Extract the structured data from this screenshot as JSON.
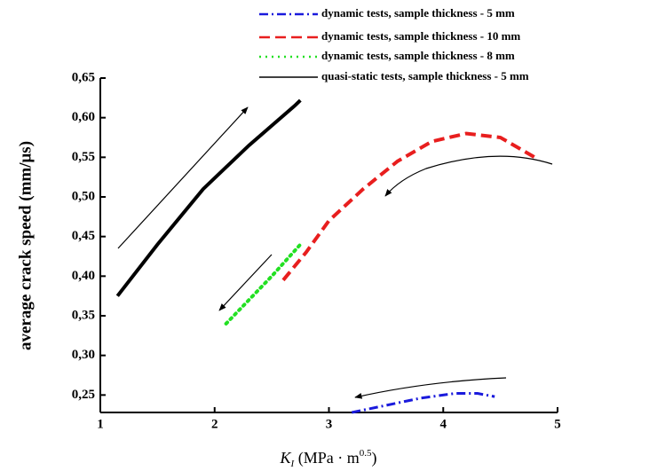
{
  "chart_data": {
    "type": "line",
    "xlabel": [
      "K",
      "I",
      " (MPa · m",
      "0.5",
      ")"
    ],
    "ylabel": "average crack speed (mm/μs)",
    "xlim": [
      1,
      5
    ],
    "xticks": [
      1,
      2,
      3,
      4,
      5
    ],
    "ylim": [
      0.228,
      0.65
    ],
    "yticks": [
      {
        "value": 0.25,
        "label": "0,25"
      },
      {
        "value": 0.3,
        "label": "0,30"
      },
      {
        "value": 0.35,
        "label": "0,35"
      },
      {
        "value": 0.4,
        "label": "0,40"
      },
      {
        "value": 0.45,
        "label": "0,45"
      },
      {
        "value": 0.5,
        "label": "0,50"
      },
      {
        "value": 0.55,
        "label": "0,55"
      },
      {
        "value": 0.6,
        "label": "0,60"
      },
      {
        "value": 0.65,
        "label": "0,65"
      }
    ],
    "series": [
      {
        "name": "dynamic tests, sample thickness - 5 mm",
        "color": "#1a1adc",
        "linestyle": "dashdot",
        "x": [
          3.2,
          3.5,
          3.8,
          4.1,
          4.3,
          4.45
        ],
        "values": [
          0.228,
          0.237,
          0.246,
          0.252,
          0.252,
          0.248
        ]
      },
      {
        "name": "dynamic tests, sample thickness - 10 mm",
        "color": "#e81e1e",
        "linestyle": "dashed",
        "x": [
          2.6,
          2.8,
          3.0,
          3.3,
          3.6,
          3.9,
          4.2,
          4.5,
          4.8
        ],
        "values": [
          0.395,
          0.43,
          0.47,
          0.51,
          0.545,
          0.57,
          0.58,
          0.575,
          0.55
        ]
      },
      {
        "name": "dynamic tests, sample thickness - 8 mm",
        "color": "#22e022",
        "linestyle": "dotted",
        "x": [
          2.1,
          2.3,
          2.5,
          2.75
        ],
        "values": [
          0.34,
          0.37,
          0.4,
          0.44
        ]
      },
      {
        "name": "quasi-static tests, sample thickness - 5 mm",
        "color": "#000000",
        "linestyle": "solid",
        "x": [
          1.15,
          1.5,
          1.9,
          2.3,
          2.7,
          2.75
        ],
        "values": [
          0.375,
          0.44,
          0.51,
          0.565,
          0.615,
          0.622
        ]
      }
    ]
  }
}
